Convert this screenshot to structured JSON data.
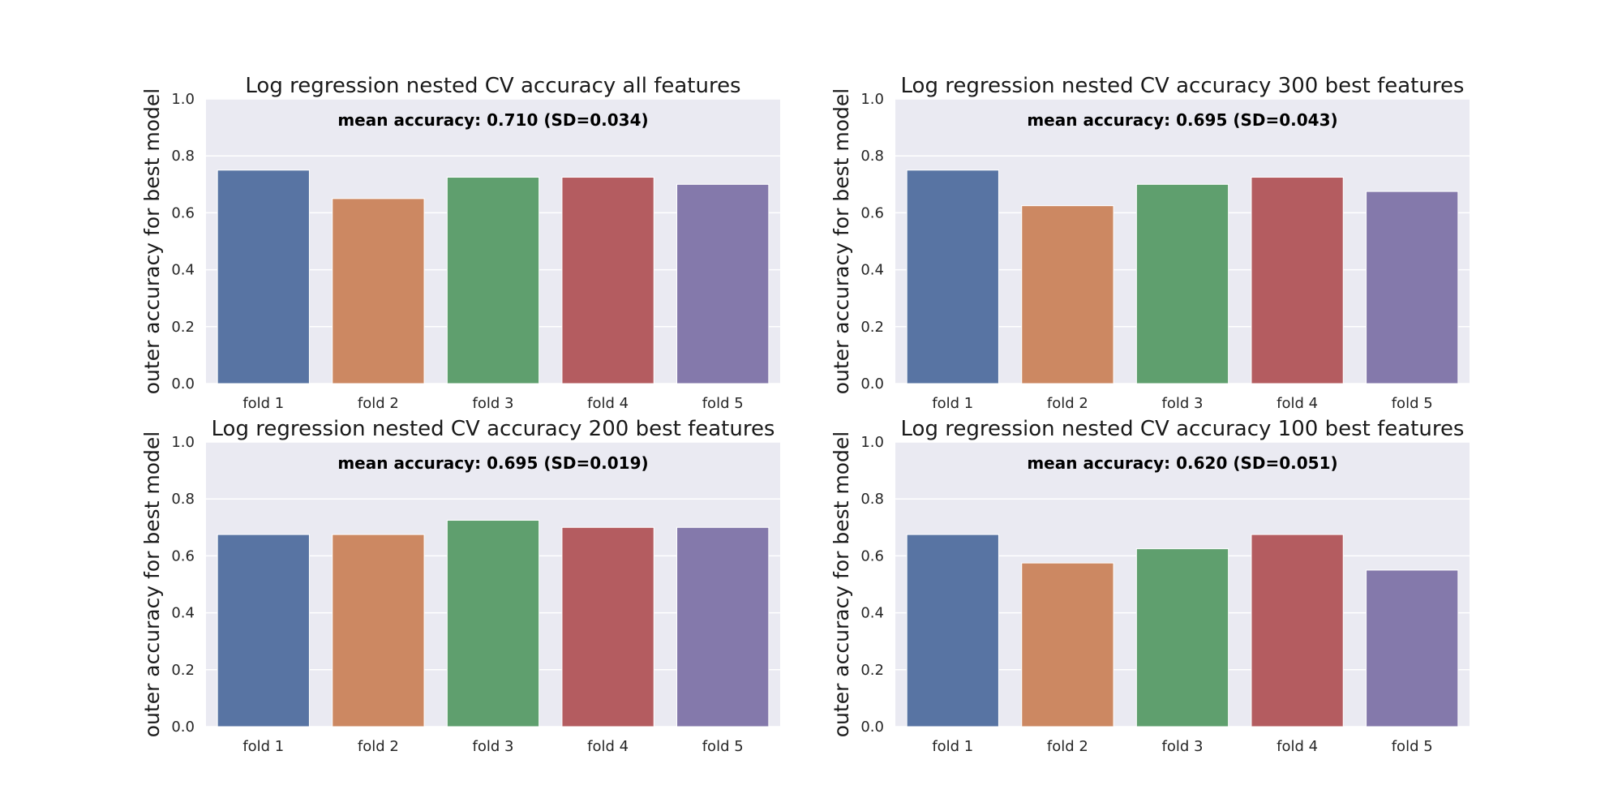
{
  "chart_data": [
    {
      "type": "bar",
      "title": "Log regression nested CV accuracy all features",
      "xlabel": "",
      "ylabel": "outer accuracy for best model",
      "annotation": "mean accuracy: 0.710 (SD=0.034)",
      "categories": [
        "fold 1",
        "fold 2",
        "fold 3",
        "fold 4",
        "fold 5"
      ],
      "values": [
        0.75,
        0.65,
        0.725,
        0.725,
        0.7
      ],
      "ylim": [
        0,
        1
      ],
      "yticks": [
        "0.0",
        "0.2",
        "0.4",
        "0.6",
        "0.8",
        "1.0"
      ],
      "grid": true,
      "colors": [
        "#5874a3",
        "#cc8862",
        "#5f9f6e",
        "#b45c60",
        "#8479ab"
      ]
    },
    {
      "type": "bar",
      "title": "Log regression nested CV accuracy 300 best features",
      "xlabel": "",
      "ylabel": "outer accuracy for best model",
      "annotation": "mean accuracy: 0.695 (SD=0.043)",
      "categories": [
        "fold 1",
        "fold 2",
        "fold 3",
        "fold 4",
        "fold 5"
      ],
      "values": [
        0.75,
        0.625,
        0.7,
        0.725,
        0.675
      ],
      "ylim": [
        0,
        1
      ],
      "yticks": [
        "0.0",
        "0.2",
        "0.4",
        "0.6",
        "0.8",
        "1.0"
      ],
      "grid": true,
      "colors": [
        "#5874a3",
        "#cc8862",
        "#5f9f6e",
        "#b45c60",
        "#8479ab"
      ]
    },
    {
      "type": "bar",
      "title": "Log regression nested CV accuracy 200 best features",
      "xlabel": "",
      "ylabel": "outer accuracy for best model",
      "annotation": "mean accuracy: 0.695 (SD=0.019)",
      "categories": [
        "fold 1",
        "fold 2",
        "fold 3",
        "fold 4",
        "fold 5"
      ],
      "values": [
        0.675,
        0.675,
        0.725,
        0.7,
        0.7
      ],
      "ylim": [
        0,
        1
      ],
      "yticks": [
        "0.0",
        "0.2",
        "0.4",
        "0.6",
        "0.8",
        "1.0"
      ],
      "grid": true,
      "colors": [
        "#5874a3",
        "#cc8862",
        "#5f9f6e",
        "#b45c60",
        "#8479ab"
      ]
    },
    {
      "type": "bar",
      "title": "Log regression nested CV accuracy 100 best features",
      "xlabel": "",
      "ylabel": "outer accuracy for best model",
      "annotation": "mean accuracy: 0.620 (SD=0.051)",
      "categories": [
        "fold 1",
        "fold 2",
        "fold 3",
        "fold 4",
        "fold 5"
      ],
      "values": [
        0.675,
        0.575,
        0.625,
        0.675,
        0.55
      ],
      "ylim": [
        0,
        1
      ],
      "yticks": [
        "0.0",
        "0.2",
        "0.4",
        "0.6",
        "0.8",
        "1.0"
      ],
      "grid": true,
      "colors": [
        "#5874a3",
        "#cc8862",
        "#5f9f6e",
        "#b45c60",
        "#8479ab"
      ]
    }
  ],
  "style": {
    "plot_background": "#eaeaf2",
    "grid_color": "#ffffff",
    "text_color": "#262626"
  }
}
